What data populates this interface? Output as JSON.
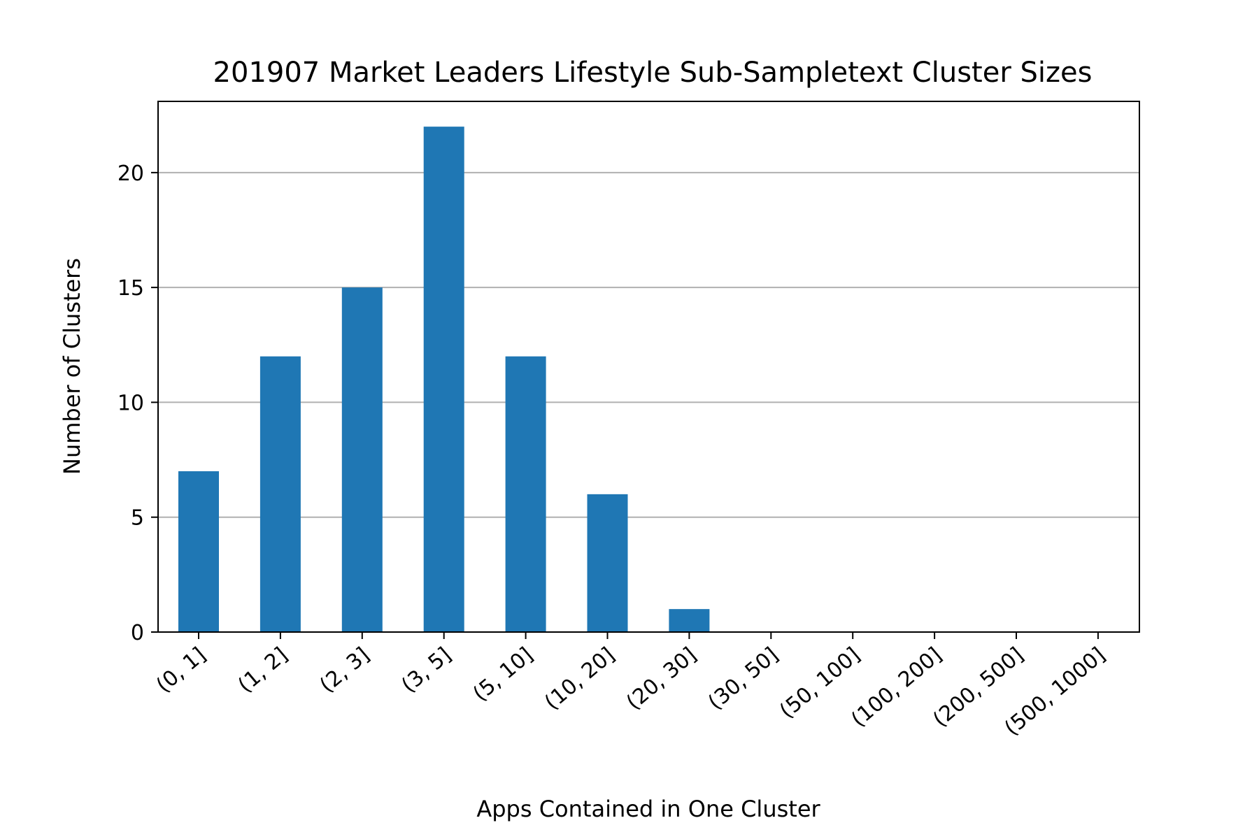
{
  "chart_data": {
    "type": "bar",
    "title": "201907 Market Leaders Lifestyle Sub-Sampletext Cluster Sizes",
    "xlabel": "Apps Contained in One Cluster",
    "ylabel": "Number of Clusters",
    "categories": [
      "(0, 1]",
      "(1, 2]",
      "(2, 3]",
      "(3, 5]",
      "(5, 10]",
      "(10, 20]",
      "(20, 30]",
      "(30, 50]",
      "(50, 100]",
      "(100, 200]",
      "(200, 500]",
      "(500, 1000]"
    ],
    "values": [
      7,
      12,
      15,
      22,
      12,
      6,
      1,
      0,
      0,
      0,
      0,
      0
    ],
    "ylim": [
      0,
      23.1
    ],
    "yticks": [
      0,
      5,
      10,
      15,
      20
    ],
    "grid": "y",
    "bar_color": "#1f77b4",
    "grid_color": "#b0b0b0"
  }
}
